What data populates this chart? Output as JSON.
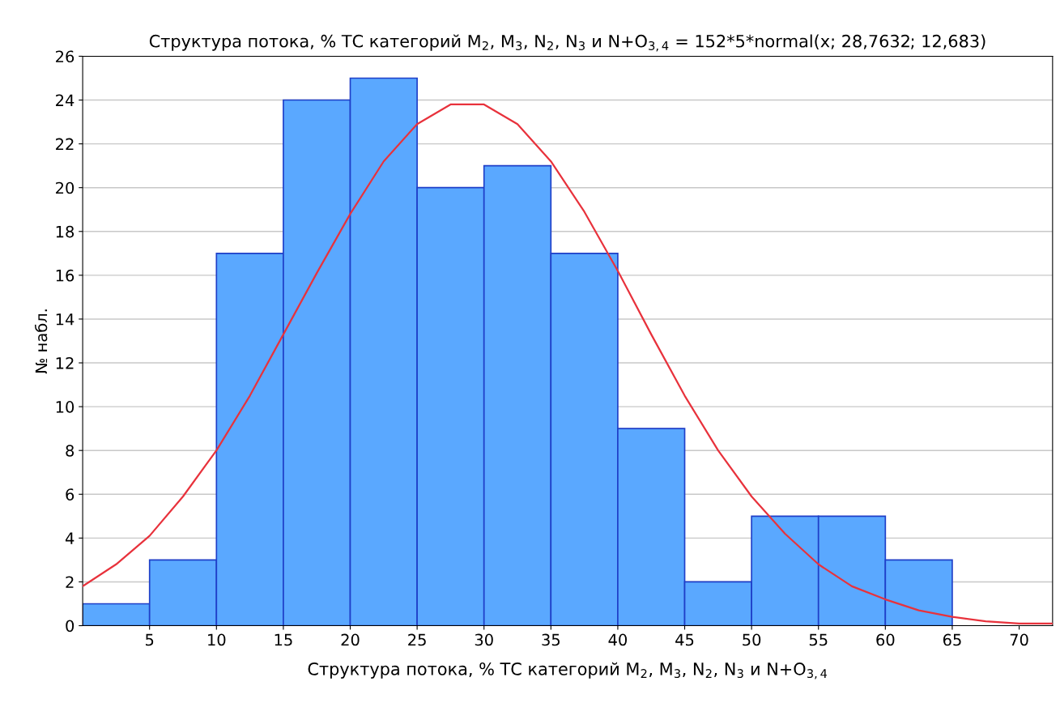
{
  "chart_data": {
    "type": "histogram",
    "title": "Структура потока, % ТС категорий M$_{2}$, M$_{3}$, N$_{2}$, N$_{3}$ и N+O$_{3,4}$ = 152*5*normal(x; 28,7632; 12,683)",
    "xlabel": "Структура потока, % ТС категорий M$_{2}$, M$_{3}$, N$_{2}$, N$_{3}$ и N+O$_{3,4}$",
    "ylabel": "№ набл.",
    "bins": [
      0,
      5,
      10,
      15,
      20,
      25,
      30,
      35,
      40,
      45,
      50,
      55,
      60,
      65
    ],
    "values": [
      1,
      3,
      17,
      24,
      25,
      20,
      21,
      17,
      9,
      2,
      5,
      5,
      3
    ],
    "color": "#5aa8ff",
    "series": [
      {
        "type": "line",
        "color": "#e8323c",
        "x": [
          0,
          2.5,
          5,
          7.5,
          10,
          12.5,
          15,
          17.5,
          20,
          22.5,
          25,
          27.5,
          30,
          32.5,
          35,
          37.5,
          40,
          42.5,
          45,
          47.5,
          50,
          52.5,
          55,
          57.5,
          60,
          62.5,
          65,
          67.5,
          70,
          72.5
        ],
        "values": [
          1.8,
          2.8,
          4.1,
          5.9,
          8.0,
          10.5,
          13.3,
          16.1,
          18.8,
          21.2,
          22.9,
          23.8,
          23.8,
          22.9,
          21.2,
          18.9,
          16.2,
          13.3,
          10.5,
          8.0,
          5.9,
          4.2,
          2.8,
          1.8,
          1.2,
          0.7,
          0.4,
          0.2,
          0.1,
          0.1
        ]
      }
    ],
    "xlim": [
      0,
      72.5
    ],
    "xticks": [
      5,
      10,
      15,
      20,
      25,
      30,
      35,
      40,
      45,
      50,
      55,
      60,
      65,
      70
    ],
    "ylim": [
      0,
      26
    ],
    "yticks": [
      0,
      2,
      4,
      6,
      8,
      10,
      12,
      14,
      16,
      18,
      20,
      22,
      24,
      26
    ],
    "grid": "y"
  }
}
